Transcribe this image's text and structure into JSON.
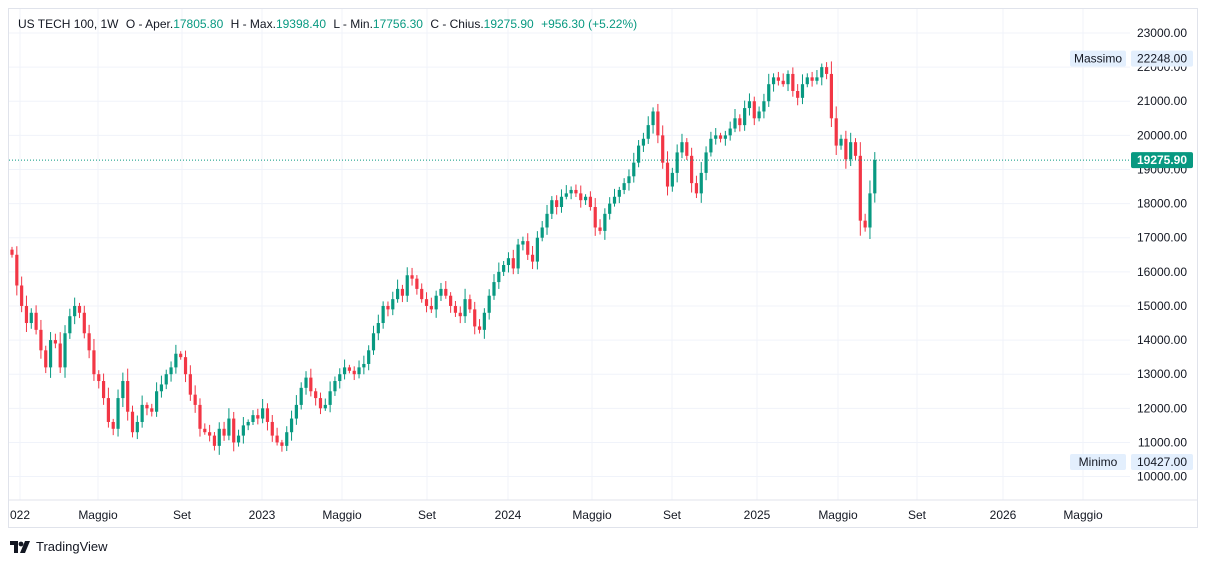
{
  "legend": {
    "symbol": "US TECH 100",
    "interval": "1W",
    "open_label": "O - Aper.",
    "open": "17805.80",
    "high_label": "H - Max.",
    "high": "19398.40",
    "low_label": "L - Min.",
    "low": "17756.30",
    "close_label": "C - Chius.",
    "close": "19275.90",
    "change": "+956.30 (+5.22%)"
  },
  "branding": {
    "logo_icon": "tradingview-logo-icon",
    "name": "TradingView"
  },
  "colors": {
    "up": "#089981",
    "down": "#f23645",
    "grid": "#f0f3fa",
    "axis_text": "#131722",
    "marker_bg": "#e3effd"
  },
  "chart_data": {
    "type": "candlestick",
    "y_axis": {
      "ticks": [
        "23000.00",
        "22000.00",
        "21000.00",
        "20000.00",
        "19000.00",
        "18000.00",
        "17000.00",
        "16000.00",
        "15000.00",
        "14000.00",
        "13000.00",
        "12000.00",
        "11000.00",
        "10000.00"
      ],
      "range": [
        9700,
        23300
      ]
    },
    "x_axis": {
      "ticks": [
        "022",
        "Maggio",
        "Set",
        "2023",
        "Maggio",
        "Set",
        "2024",
        "Maggio",
        "Set",
        "2025",
        "Maggio",
        "Set",
        "2026",
        "Maggio"
      ]
    },
    "grid": true,
    "last_price": {
      "value": 19275.9,
      "label": "19275.90"
    },
    "high_marker": {
      "label": "Massimo",
      "value": 22248.0,
      "value_text": "22248.00"
    },
    "low_marker": {
      "label": "Minimo",
      "value": 10427.0,
      "value_text": "10427.00"
    },
    "closes": [
      16500,
      15600,
      15000,
      14500,
      14800,
      14300,
      13700,
      13200,
      14000,
      13900,
      13200,
      14200,
      14700,
      15000,
      14800,
      14200,
      13700,
      13000,
      12800,
      12300,
      11600,
      11400,
      12300,
      12800,
      11900,
      11300,
      11600,
      12100,
      12000,
      11900,
      12500,
      12700,
      13000,
      13200,
      13600,
      13500,
      13000,
      12400,
      12100,
      11400,
      11300,
      11200,
      10900,
      11400,
      11200,
      11700,
      11000,
      11200,
      11500,
      11600,
      11800,
      11700,
      12000,
      11600,
      11200,
      11000,
      10900,
      11300,
      11700,
      12100,
      12600,
      12900,
      12500,
      12300,
      12000,
      12100,
      12500,
      12800,
      13000,
      13200,
      13100,
      13000,
      13200,
      13300,
      13700,
      14200,
      14500,
      15000,
      14900,
      15200,
      15500,
      15300,
      15900,
      15800,
      15500,
      15200,
      15000,
      14900,
      15300,
      15500,
      15300,
      15000,
      14800,
      14700,
      15200,
      14900,
      14400,
      14300,
      14800,
      15300,
      15700,
      16000,
      16200,
      16400,
      16100,
      16800,
      16900,
      16500,
      16300,
      17000,
      17300,
      17700,
      18100,
      17900,
      18200,
      18300,
      18400,
      18300,
      18100,
      18200,
      17900,
      17300,
      17200,
      17700,
      18000,
      18200,
      18400,
      18600,
      18800,
      19200,
      19700,
      19900,
      20300,
      20700,
      20000,
      19200,
      18500,
      18900,
      19500,
      19800,
      19400,
      18600,
      18300,
      18900,
      19500,
      19900,
      20000,
      19900,
      20000,
      20200,
      20500,
      20300,
      20800,
      21000,
      20500,
      20700,
      21000,
      21500,
      21700,
      21600,
      21500,
      21800,
      21300,
      21100,
      21500,
      21700,
      21600,
      21700,
      22000,
      21800,
      20500,
      19700,
      19900,
      19300,
      19800,
      19400,
      17500,
      17300,
      18300,
      19276
    ]
  }
}
